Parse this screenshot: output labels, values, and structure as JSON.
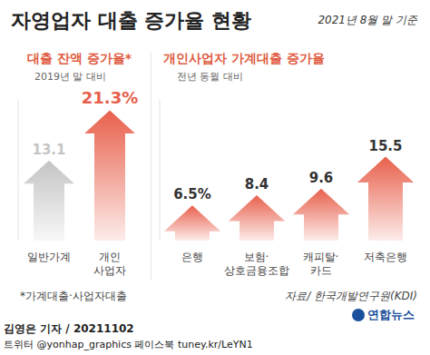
{
  "title": "자영업자 대출 증가율 현황",
  "date": "2021년 8월 말 기준",
  "chart_data": [
    {
      "type": "bar",
      "title": "대출 잔액 증가율*",
      "subtitle": "2019년 말 대비",
      "categories": [
        "일반가계",
        "개인\n사업자"
      ],
      "values": [
        13.1,
        21.3
      ],
      "value_labels": [
        "13.1",
        "21.3%"
      ],
      "colors": [
        "#c4c4c4",
        "#e8604c"
      ],
      "ylim": [
        0,
        23
      ],
      "grid": false,
      "data_labels": true,
      "tick_labels": "x"
    },
    {
      "type": "bar",
      "title": "개인사업자 가계대출 증가율",
      "subtitle": "전년 동월 대비",
      "categories": [
        "은행",
        "보험·\n상호금융조합",
        "캐피탈·\n카드",
        "저축은행"
      ],
      "values": [
        6.5,
        8.4,
        9.6,
        15.5
      ],
      "value_labels": [
        "6.5%",
        "8.4",
        "9.6",
        "15.5"
      ],
      "colors": [
        "#e8604c",
        "#e8604c",
        "#e8604c",
        "#e8604c"
      ],
      "ylim": [
        0,
        26
      ],
      "grid": false,
      "data_labels": true,
      "tick_labels": "x"
    }
  ],
  "footnote": "*가계대출·사업자대출",
  "source": "자료/ 한국개발연구원(KDI)",
  "logo": "연합뉴스",
  "byline": "김영은 기자 / 20211102",
  "social": "트위터 @yonhap_graphics 페이스북 tuney.kr/LeYN1"
}
